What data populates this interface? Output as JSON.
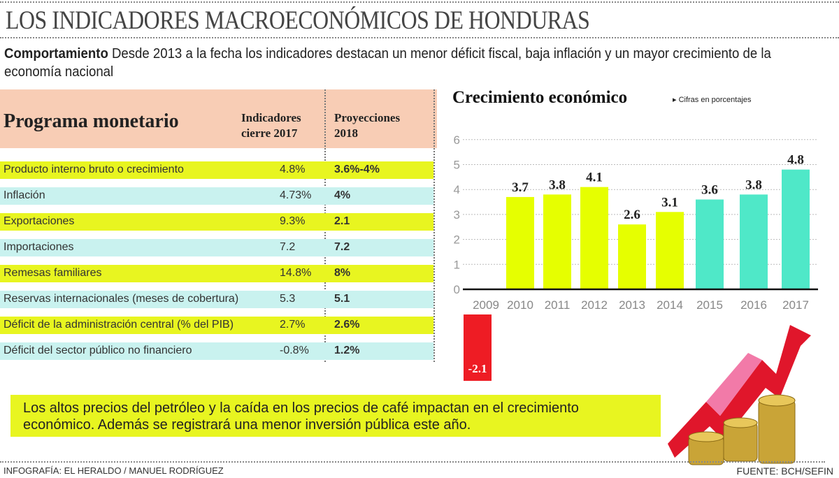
{
  "header": {
    "title": "LOS INDICADORES MACROECONÓMICOS DE HONDURAS",
    "subtitle_bold": "Comportamiento",
    "subtitle_text": " Desde 2013 a la fecha los indicadores destacan un menor déficit fiscal, baja inflación y un mayor crecimiento de la economía nacional"
  },
  "table": {
    "title": "Programa monetario",
    "col1_line1": "Indicadores",
    "col1_line2": "cierre 2017",
    "col2_line1": "Proyecciones",
    "col2_line2": "2018",
    "rows": [
      {
        "label": "Producto interno bruto o crecimiento",
        "v2017": "4.8%",
        "v2018": "3.6%-4%"
      },
      {
        "label": "Inflación",
        "v2017": "4.73%",
        "v2018": "4%"
      },
      {
        "label": "Exportaciones",
        "v2017": "9.3%",
        "v2018": "2.1"
      },
      {
        "label": "Importaciones",
        "v2017": "7.2",
        "v2018": "7.2"
      },
      {
        "label": "Remesas familiares",
        "v2017": "14.8%",
        "v2018": "8%"
      },
      {
        "label": "Reservas internacionales (meses de cobertura)",
        "v2017": "5.3",
        "v2018": "5.1"
      },
      {
        "label": "Déficit de la administración central (% del PIB)",
        "v2017": "2.7%",
        "v2018": "2.6%"
      },
      {
        "label": "Déficit del sector público no financiero",
        "v2017": "-0.8%",
        "v2018": "1.2%"
      }
    ],
    "colors": {
      "header": "#f8cdb5",
      "row_yellow": "#e8f520",
      "row_teal": "#c9f2ef"
    }
  },
  "chart_data": {
    "type": "bar",
    "title": "Crecimiento económico",
    "subtitle": "Cifras en porcentajes",
    "categories": [
      "2009",
      "2010",
      "2011",
      "2012",
      "2013",
      "2014",
      "2015",
      "2016",
      "2017"
    ],
    "values": [
      -2.1,
      3.7,
      3.8,
      4.1,
      2.6,
      3.1,
      3.6,
      3.8,
      4.8
    ],
    "data_labels": [
      "-2.1",
      "3.7",
      "3.8",
      "4.1",
      "2.6",
      "3.1",
      "3.6",
      "3.8",
      "4.8"
    ],
    "bar_colors": [
      "#ee1c24",
      "#e6ff00",
      "#e6ff00",
      "#e6ff00",
      "#e6ff00",
      "#e6ff00",
      "#4fe8c8",
      "#4fe8c8",
      "#4fe8c8"
    ],
    "yticks": [
      "0",
      "1",
      "2",
      "3",
      "4",
      "5",
      "6"
    ],
    "ylim": [
      0,
      6
    ],
    "grid": true,
    "xlabel": "",
    "ylabel": ""
  },
  "note": {
    "text": "Los altos precios del petróleo y la caída en los precios de café impactan en el crecimiento económico. Además se registrará una menor inversión pública este año."
  },
  "footer": {
    "credit": "INFOGRAFÍA: EL HERALDO / MANUEL RODRÍGUEZ",
    "source": "FUENTE: BCH/SEFIN"
  }
}
